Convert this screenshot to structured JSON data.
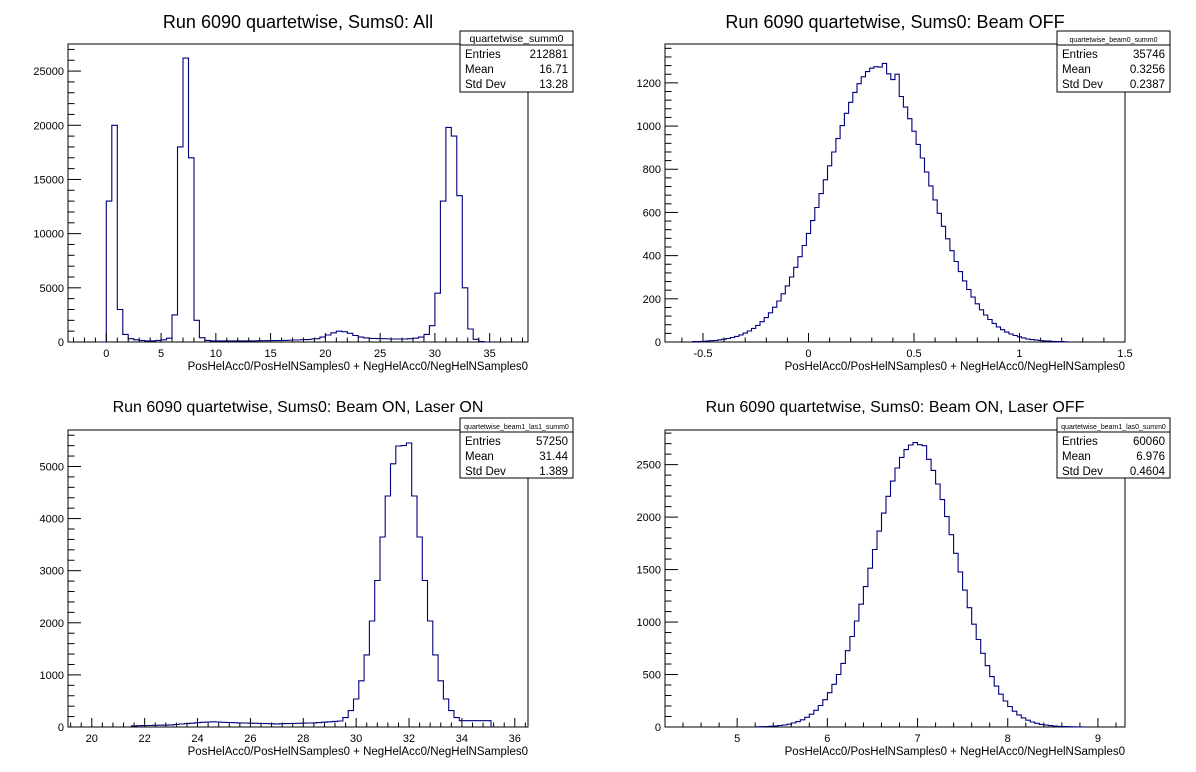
{
  "chart_data": [
    {
      "type": "histogram",
      "title": "Run 6090 quartetwise, Sums0: All",
      "xlabel": "PosHelAcc0/PosHelNSamples0 + NegHelAcc0/NegHelNSamples0",
      "ylabel": "",
      "xlim": [
        -3.5,
        38.5
      ],
      "ylim": [
        0,
        27500
      ],
      "xticks": [
        0,
        5,
        10,
        15,
        20,
        25,
        30,
        35
      ],
      "yticks": [
        0,
        5000,
        10000,
        15000,
        20000,
        25000
      ],
      "stats": {
        "name": "quartetwise_summ0",
        "rows": [
          {
            "label": "Entries",
            "value": "212881"
          },
          {
            "label": "Mean",
            "value": "16.71"
          },
          {
            "label": "Std Dev",
            "value": "13.28"
          }
        ]
      },
      "bin_width": 0.5,
      "series": [
        {
          "line_color": "#00007f",
          "bins": [
            [
              -0.5,
              0
            ],
            [
              0.0,
              13000
            ],
            [
              0.5,
              20000
            ],
            [
              1.0,
              3000
            ],
            [
              1.5,
              700
            ],
            [
              2.0,
              300
            ],
            [
              2.5,
              200
            ],
            [
              3.0,
              150
            ],
            [
              3.5,
              100
            ],
            [
              4.0,
              100
            ],
            [
              4.5,
              150
            ],
            [
              5.0,
              200
            ],
            [
              5.5,
              350
            ],
            [
              6.0,
              2500
            ],
            [
              6.5,
              18000
            ],
            [
              7.0,
              26200
            ],
            [
              7.5,
              17000
            ],
            [
              8.0,
              2000
            ],
            [
              8.5,
              400
            ],
            [
              9.0,
              150
            ],
            [
              9.5,
              100
            ],
            [
              10.0,
              100
            ],
            [
              11.0,
              100
            ],
            [
              12.0,
              100
            ],
            [
              13.0,
              100
            ],
            [
              14.0,
              120
            ],
            [
              15.0,
              130
            ],
            [
              16.0,
              150
            ],
            [
              17.0,
              180
            ],
            [
              18.0,
              220
            ],
            [
              19.0,
              300
            ],
            [
              19.5,
              450
            ],
            [
              20.0,
              650
            ],
            [
              20.5,
              850
            ],
            [
              21.0,
              1000
            ],
            [
              21.5,
              950
            ],
            [
              22.0,
              800
            ],
            [
              22.5,
              600
            ],
            [
              23.0,
              450
            ],
            [
              23.5,
              380
            ],
            [
              24.0,
              330
            ],
            [
              25.0,
              300
            ],
            [
              26.0,
              280
            ],
            [
              27.0,
              280
            ],
            [
              27.5,
              300
            ],
            [
              28.0,
              350
            ],
            [
              28.5,
              450
            ],
            [
              29.0,
              700
            ],
            [
              29.5,
              1500
            ],
            [
              30.0,
              4500
            ],
            [
              30.5,
              13000
            ],
            [
              31.0,
              19800
            ],
            [
              31.5,
              19000
            ],
            [
              32.0,
              13500
            ],
            [
              32.5,
              5000
            ],
            [
              33.0,
              1200
            ],
            [
              33.5,
              250
            ],
            [
              34.0,
              50
            ],
            [
              34.5,
              0
            ]
          ]
        }
      ]
    },
    {
      "type": "histogram",
      "title": "Run 6090 quartetwise, Sums0: Beam OFF",
      "xlabel": "PosHelAcc0/PosHelNSamples0 + NegHelAcc0/NegHelNSamples0",
      "ylabel": "",
      "xlim": [
        -0.68,
        1.5
      ],
      "ylim": [
        0,
        1380
      ],
      "xticks": [
        -0.5,
        0,
        0.5,
        1,
        1.5
      ],
      "yticks": [
        0,
        200,
        400,
        600,
        800,
        1000,
        1200
      ],
      "stats": {
        "name": "quartetwise_beam0_summ0",
        "rows": [
          {
            "label": "Entries",
            "value": "35746"
          },
          {
            "label": "Mean",
            "value": "0.3256"
          },
          {
            "label": "Std Dev",
            "value": "0.2387"
          }
        ]
      },
      "gauss": {
        "mean": 0.3256,
        "sigma": 0.2387,
        "peak": 1275,
        "lo": -0.55,
        "hi": 1.22,
        "step": 0.02,
        "overrides": [
          [
            0.26,
            1305
          ],
          [
            0.3,
            1270
          ],
          [
            0.34,
            1290
          ],
          [
            0.36,
            1235
          ],
          [
            0.38,
            1310
          ],
          [
            0.4,
            1240
          ]
        ]
      },
      "series": [
        {
          "line_color": "#00007f"
        }
      ]
    },
    {
      "type": "histogram",
      "title": "Run 6090 quartetwise, Sums0: Beam ON, Laser ON",
      "xlabel": "PosHelAcc0/PosHelNSamples0 + NegHelAcc0/NegHelNSamples0",
      "ylabel": "",
      "xlim": [
        19.1,
        36.5
      ],
      "ylim": [
        0,
        5700
      ],
      "xticks": [
        20,
        22,
        24,
        26,
        28,
        30,
        32,
        34,
        36
      ],
      "yticks": [
        0,
        1000,
        2000,
        3000,
        4000,
        5000
      ],
      "stats": {
        "name": "quartetwise_beam1_las1_summ0",
        "rows": [
          {
            "label": "Entries",
            "value": "57250"
          },
          {
            "label": "Mean",
            "value": "31.44"
          },
          {
            "label": "Std Dev",
            "value": "1.389"
          }
        ]
      },
      "gauss": {
        "mean": 31.7,
        "sigma": 0.78,
        "peak": 5400,
        "lo": 21.5,
        "hi": 34.9,
        "step": 0.2,
        "background": [
          [
            21.5,
            20
          ],
          [
            23.0,
            40
          ],
          [
            24.2,
            90
          ],
          [
            24.6,
            100
          ],
          [
            25.5,
            80
          ],
          [
            27.0,
            60
          ],
          [
            28.5,
            80
          ],
          [
            29.5,
            120
          ]
        ],
        "overrides": [
          [
            31.6,
            5400
          ],
          [
            31.8,
            5450
          ],
          [
            32.0,
            5250
          ]
        ]
      },
      "series": [
        {
          "line_color": "#00007f"
        }
      ]
    },
    {
      "type": "histogram",
      "title": "Run 6090 quartetwise, Sums0: Beam ON, Laser OFF",
      "xlabel": "PosHelAcc0/PosHelNSamples0 + NegHelAcc0/NegHelNSamples0",
      "ylabel": "",
      "xlim": [
        4.2,
        9.3
      ],
      "ylim": [
        0,
        2830
      ],
      "xticks": [
        5,
        6,
        7,
        8,
        9
      ],
      "yticks": [
        0,
        500,
        1000,
        1500,
        2000,
        2500
      ],
      "stats": {
        "name": "quartetwise_beam1_las0_summ0",
        "rows": [
          {
            "label": "Entries",
            "value": "60060"
          },
          {
            "label": "Mean",
            "value": "6.976"
          },
          {
            "label": "Std Dev",
            "value": "0.4604"
          }
        ]
      },
      "gauss": {
        "mean": 6.97,
        "sigma": 0.46,
        "peak": 2700,
        "lo": 5.2,
        "hi": 8.8,
        "step": 0.05,
        "overrides": [
          [
            6.95,
            2710
          ],
          [
            7.0,
            2690
          ],
          [
            7.05,
            2680
          ]
        ]
      },
      "series": [
        {
          "line_color": "#00007f"
        }
      ]
    }
  ]
}
